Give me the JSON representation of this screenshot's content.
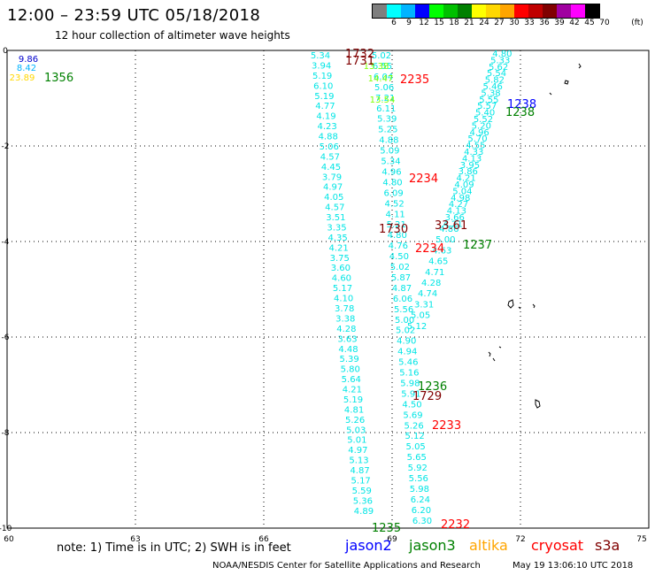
{
  "title": "12:00 – 23:59 UTC 05/18/2018",
  "subtitle": "12 hour collection of altimeter wave heights",
  "legend": {
    "unit": "(ft)",
    "bins": [
      {
        "color": "#7f7f7f",
        "label": "3"
      },
      {
        "color": "#00ffff",
        "label": "6"
      },
      {
        "color": "#00b4ff",
        "label": "9"
      },
      {
        "color": "#0000ff",
        "label": "12"
      },
      {
        "color": "#00ff00",
        "label": "15"
      },
      {
        "color": "#00c000",
        "label": "18"
      },
      {
        "color": "#008000",
        "label": "21"
      },
      {
        "color": "#ffff00",
        "label": "24"
      },
      {
        "color": "#ffd700",
        "label": "27"
      },
      {
        "color": "#ffa500",
        "label": "30"
      },
      {
        "color": "#ff0000",
        "label": "33"
      },
      {
        "color": "#c00000",
        "label": "36"
      },
      {
        "color": "#800000",
        "label": "39"
      },
      {
        "color": "#a000a0",
        "label": "42"
      },
      {
        "color": "#ff00ff",
        "label": "45"
      },
      {
        "color": "#000000",
        "label": "70"
      }
    ]
  },
  "map": {
    "lon_ticks": [
      "60",
      "63",
      "66",
      "69",
      "72",
      "75"
    ],
    "lat_ticks": [
      "0",
      "-2",
      "-4",
      "-6",
      "-8",
      "-10"
    ],
    "lon_range": [
      60,
      75
    ],
    "lat_range": [
      0,
      -10
    ]
  },
  "tracks": {
    "track_a": {
      "color": "#00e5e5",
      "values": [
        "5.34",
        "3.94",
        "5.19",
        "6.10",
        "5.19",
        "4.77",
        "4.19",
        "4.23",
        "4.88",
        "5.06",
        "4.57",
        "4.45",
        "3.79",
        "4.97",
        "4.05",
        "4.57",
        "3.51",
        "3.35",
        "4.35",
        "4.21",
        "3.75",
        "3.60",
        "4.60",
        "5.17",
        "4.10",
        "3.78",
        "3.38",
        "4.28",
        "3.63",
        "4.48",
        "5.39",
        "5.80",
        "5.64",
        "4.21",
        "5.19",
        "4.81",
        "5.26",
        "5.03",
        "5.01",
        "4.97",
        "5.13",
        "4.87",
        "5.17",
        "5.59",
        "5.36",
        "4.89"
      ]
    },
    "track_b": {
      "color": "#00e5e5",
      "values": [
        "5.02",
        "6.55",
        "6.04",
        "5.06",
        "7.21",
        "6.11",
        "5.39",
        "5.25",
        "4.88",
        "5.09",
        "5.34",
        "4.96",
        "4.80",
        "6.09",
        "4.52",
        "4.11",
        "5.21",
        "4.80",
        "4.76",
        "4.50",
        "5.02",
        "5.87",
        "4.87",
        "6.06",
        "5.56",
        "5.00",
        "5.02",
        "4.90",
        "4.94",
        "5.46",
        "5.16",
        "5.98",
        "5.91",
        "4.50",
        "5.69",
        "5.26",
        "5.12",
        "5.05",
        "5.65",
        "5.92",
        "5.56",
        "5.98",
        "6.24",
        "6.20",
        "6.30"
      ]
    },
    "track_b_extra": {
      "color": "#7fff00",
      "values": [
        "13.38",
        "14.47",
        "13.54"
      ]
    },
    "track_c": {
      "color": "#00e5e5",
      "values": [
        "4.86",
        "5.00",
        "4.63",
        "4.65",
        "4.71",
        "4.28",
        "4.74",
        "3.31",
        "5.05",
        "5.12"
      ]
    },
    "track_d": {
      "color": "#00e5e5",
      "values": [
        "4.80",
        "5.33",
        "5.62",
        "5.54",
        "5.82",
        "5.46",
        "5.38",
        "5.55",
        "5.57",
        "5.40",
        "5.52",
        "5.20",
        "4.96",
        "5.70",
        "4.55",
        "4.33",
        "4.13",
        "3.95",
        "3.86",
        "4.21",
        "4.09",
        "5.04",
        "4.98",
        "4.27",
        "4.13",
        "3.66",
        "4.21"
      ]
    }
  },
  "spot_values": [
    {
      "text": "9.86",
      "color": "#0000cc"
    },
    {
      "text": "8.42",
      "color": "#00b4ff"
    },
    {
      "text": "23.89",
      "color": "#ffd700"
    }
  ],
  "time_labels": [
    {
      "text": "1356",
      "color": "#008000"
    },
    {
      "text": "1732",
      "color": "#800000"
    },
    {
      "text": "1731",
      "color": "#800000"
    },
    {
      "text": "2235",
      "color": "#ff0000"
    },
    {
      "text": "1238",
      "color": "#0000ff"
    },
    {
      "text": "1238",
      "color": "#008000"
    },
    {
      "text": "2234",
      "color": "#ff0000"
    },
    {
      "text": "1730",
      "color": "#800000"
    },
    {
      "text": "33.61",
      "color": "#800000"
    },
    {
      "text": "2234",
      "color": "#ff0000"
    },
    {
      "text": "1237",
      "color": "#008000"
    },
    {
      "text": "1236",
      "color": "#008000"
    },
    {
      "text": "1729",
      "color": "#800000"
    },
    {
      "text": "2233",
      "color": "#ff0000"
    },
    {
      "text": "2232",
      "color": "#ff0000"
    },
    {
      "text": "1235",
      "color": "#008000"
    }
  ],
  "note": "note: 1) Time is in UTC; 2) SWH is in feet",
  "satellites": [
    {
      "name": "jason2",
      "color": "#0000ff"
    },
    {
      "name": "jason3",
      "color": "#008000"
    },
    {
      "name": "altika",
      "color": "#ffa500"
    },
    {
      "name": "cryosat",
      "color": "#ff0000"
    },
    {
      "name": "s3a",
      "color": "#800000"
    }
  ],
  "footer_left": "NOAA/NESDIS Center for Satellite Applications and Research",
  "footer_right": "May 19 13:06:10 UTC 2018"
}
